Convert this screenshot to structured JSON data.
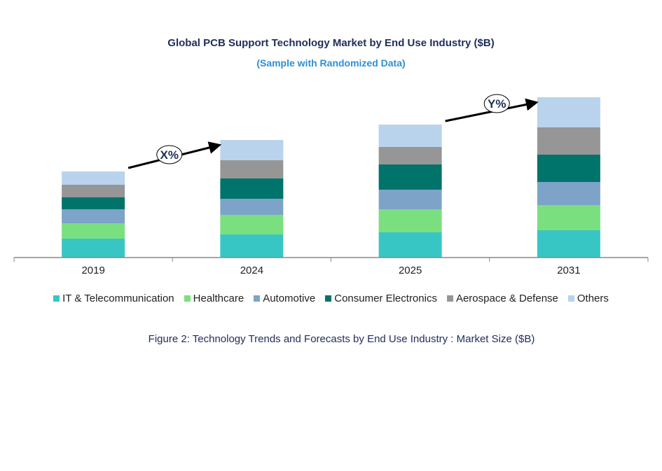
{
  "chart_data": {
    "type": "bar",
    "stacked": true,
    "title": "Global PCB Support Technology Market by End Use Industry ($B)",
    "subtitle": "(Sample with Randomized Data)",
    "categories": [
      "2019",
      "2024",
      "2025",
      "2031"
    ],
    "series": [
      {
        "name": "IT & Telecommunication",
        "color": "#38c6c4",
        "values": [
          2.7,
          3.3,
          3.6,
          3.9
        ]
      },
      {
        "name": "Healthcare",
        "color": "#7ae07f",
        "values": [
          2.2,
          2.8,
          3.3,
          3.6
        ]
      },
      {
        "name": "Automotive",
        "color": "#7ea3c8",
        "values": [
          2.0,
          2.3,
          2.8,
          3.3
        ]
      },
      {
        "name": "Consumer Electronics",
        "color": "#00736b",
        "values": [
          1.7,
          2.9,
          3.6,
          3.9
        ]
      },
      {
        "name": "Aerospace & Defense",
        "color": "#969696",
        "values": [
          1.8,
          2.6,
          2.5,
          3.9
        ]
      },
      {
        "name": "Others",
        "color": "#b9d3ec",
        "values": [
          1.9,
          2.9,
          3.2,
          4.3
        ]
      }
    ],
    "annotations": [
      {
        "label": "X%",
        "from": "2019",
        "to": "2024"
      },
      {
        "label": "Y%",
        "from": "2025",
        "to": "2031"
      }
    ],
    "legend_position": "bottom",
    "grid": false,
    "y_axis_shown": false
  },
  "caption": "Figure 2: Technology  Trends  and Forecasts by  End Use Industry   : Market Size ($B)"
}
